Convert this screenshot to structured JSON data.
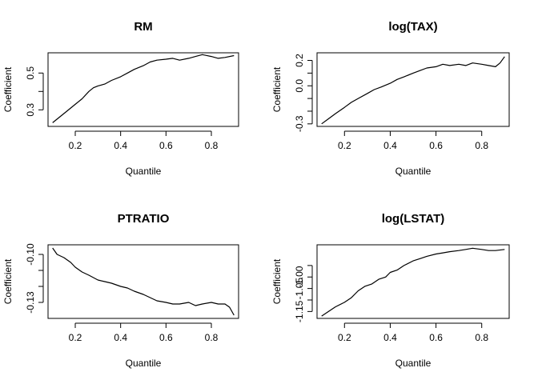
{
  "chart_data": [
    {
      "type": "line",
      "title": "RM",
      "xlabel": "Quantile",
      "ylabel": "Coefficient",
      "xlim": [
        0.08,
        0.92
      ],
      "ylim": [
        0.21,
        0.61
      ],
      "xticks": [
        0.2,
        0.4,
        0.6,
        0.8
      ],
      "xtick_labels": [
        "0.2",
        "0.4",
        "0.6",
        "0.8"
      ],
      "yticks": [
        0.3,
        0.4,
        0.5
      ],
      "ytick_labels": [
        "0.3",
        "",
        "0.5"
      ],
      "grid": false,
      "x": [
        0.1,
        0.13,
        0.16,
        0.2,
        0.23,
        0.26,
        0.28,
        0.3,
        0.33,
        0.36,
        0.4,
        0.43,
        0.46,
        0.5,
        0.53,
        0.56,
        0.6,
        0.63,
        0.66,
        0.7,
        0.73,
        0.76,
        0.8,
        0.83,
        0.86,
        0.9
      ],
      "y": [
        0.23,
        0.26,
        0.29,
        0.33,
        0.36,
        0.4,
        0.42,
        0.43,
        0.44,
        0.46,
        0.48,
        0.5,
        0.52,
        0.54,
        0.56,
        0.57,
        0.575,
        0.58,
        0.57,
        0.58,
        0.59,
        0.6,
        0.59,
        0.58,
        0.585,
        0.595
      ]
    },
    {
      "type": "line",
      "title": "log(TAX)",
      "xlabel": "Quantile",
      "ylabel": "Coefficient",
      "xlim": [
        0.08,
        0.92
      ],
      "ylim": [
        -0.32,
        0.26
      ],
      "xticks": [
        0.2,
        0.4,
        0.6,
        0.8
      ],
      "xtick_labels": [
        "0.2",
        "0.4",
        "0.6",
        "0.8"
      ],
      "yticks": [
        -0.3,
        -0.2,
        -0.1,
        0.0,
        0.1,
        0.2
      ],
      "ytick_labels": [
        "-0.3",
        "",
        "",
        "0.0",
        "",
        "0.2"
      ],
      "grid": false,
      "x": [
        0.1,
        0.13,
        0.16,
        0.2,
        0.23,
        0.26,
        0.3,
        0.33,
        0.36,
        0.4,
        0.43,
        0.46,
        0.5,
        0.53,
        0.56,
        0.6,
        0.63,
        0.66,
        0.7,
        0.73,
        0.76,
        0.8,
        0.83,
        0.86,
        0.88,
        0.9
      ],
      "y": [
        -0.3,
        -0.26,
        -0.22,
        -0.17,
        -0.13,
        -0.1,
        -0.06,
        -0.03,
        -0.01,
        0.02,
        0.05,
        0.07,
        0.1,
        0.12,
        0.14,
        0.15,
        0.17,
        0.16,
        0.17,
        0.16,
        0.18,
        0.17,
        0.16,
        0.15,
        0.18,
        0.23
      ]
    },
    {
      "type": "line",
      "title": "PTRATIO",
      "xlabel": "Quantile",
      "ylabel": "Coefficient",
      "xlim": [
        0.08,
        0.92
      ],
      "ylim": [
        -0.14,
        -0.094
      ],
      "xticks": [
        0.2,
        0.4,
        0.6,
        0.8
      ],
      "xtick_labels": [
        "0.2",
        "0.4",
        "0.6",
        "0.8"
      ],
      "yticks": [
        -0.13,
        -0.12,
        -0.11,
        -0.1
      ],
      "ytick_labels": [
        "-0.13",
        "",
        "",
        "-0.10"
      ],
      "grid": false,
      "x": [
        0.1,
        0.12,
        0.15,
        0.18,
        0.2,
        0.23,
        0.26,
        0.3,
        0.33,
        0.36,
        0.4,
        0.43,
        0.46,
        0.5,
        0.53,
        0.56,
        0.6,
        0.63,
        0.66,
        0.7,
        0.73,
        0.76,
        0.8,
        0.83,
        0.86,
        0.88,
        0.9
      ],
      "y": [
        -0.096,
        -0.1,
        -0.102,
        -0.105,
        -0.108,
        -0.111,
        -0.113,
        -0.116,
        -0.117,
        -0.118,
        -0.12,
        -0.121,
        -0.123,
        -0.125,
        -0.127,
        -0.129,
        -0.13,
        -0.131,
        -0.131,
        -0.13,
        -0.132,
        -0.131,
        -0.13,
        -0.131,
        -0.131,
        -0.133,
        -0.138
      ]
    },
    {
      "type": "line",
      "title": "log(LSTAT)",
      "xlabel": "Quantile",
      "ylabel": "Coefficient",
      "xlim": [
        0.08,
        0.92
      ],
      "ylim": [
        -1.18,
        -0.86
      ],
      "xticks": [
        0.2,
        0.4,
        0.6,
        0.8
      ],
      "xtick_labels": [
        "0.2",
        "0.4",
        "0.6",
        "0.8"
      ],
      "yticks": [
        -1.15,
        -1.1,
        -1.05,
        -1.0,
        -0.95
      ],
      "ytick_labels": [
        "-1.15",
        "",
        "-1.05",
        "-1.00",
        ""
      ],
      "grid": false,
      "x": [
        0.1,
        0.13,
        0.16,
        0.2,
        0.23,
        0.26,
        0.29,
        0.32,
        0.35,
        0.38,
        0.4,
        0.43,
        0.46,
        0.5,
        0.53,
        0.56,
        0.6,
        0.63,
        0.66,
        0.7,
        0.73,
        0.76,
        0.8,
        0.83,
        0.86,
        0.9
      ],
      "y": [
        -1.17,
        -1.15,
        -1.13,
        -1.11,
        -1.09,
        -1.06,
        -1.04,
        -1.03,
        -1.01,
        -1.0,
        -0.98,
        -0.97,
        -0.95,
        -0.93,
        -0.92,
        -0.91,
        -0.9,
        -0.895,
        -0.89,
        -0.885,
        -0.88,
        -0.875,
        -0.88,
        -0.885,
        -0.885,
        -0.88
      ]
    }
  ]
}
